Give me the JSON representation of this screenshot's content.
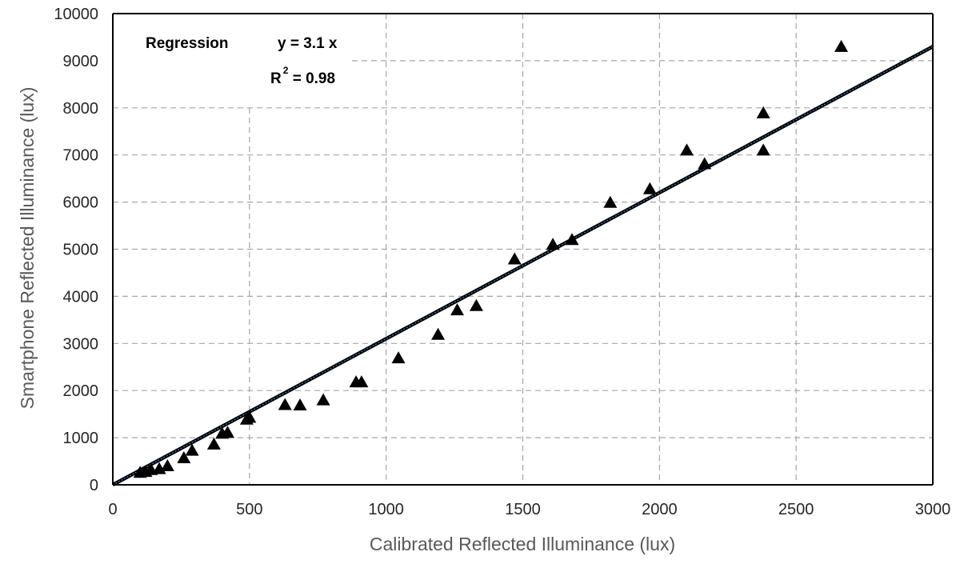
{
  "chart_data": {
    "type": "scatter",
    "title": "",
    "xlabel": "Calibrated Reflected Illuminance (lux)",
    "ylabel": "Smartphone Reflected Illuminance (lux)",
    "xlim": [
      0,
      3000
    ],
    "ylim": [
      0,
      10000
    ],
    "x_ticks": [
      "0",
      "500",
      "1000",
      "1500",
      "2000",
      "2500",
      "3000"
    ],
    "y_ticks": [
      "0",
      "1000",
      "2000",
      "3000",
      "4000",
      "5000",
      "6000",
      "7000",
      "8000",
      "9000",
      "10000"
    ],
    "grid": true,
    "marker": "triangle",
    "marker_color": "#000000",
    "points": [
      {
        "x": 100,
        "y": 250
      },
      {
        "x": 120,
        "y": 270
      },
      {
        "x": 140,
        "y": 310
      },
      {
        "x": 170,
        "y": 330
      },
      {
        "x": 200,
        "y": 390
      },
      {
        "x": 260,
        "y": 560
      },
      {
        "x": 290,
        "y": 720
      },
      {
        "x": 370,
        "y": 850
      },
      {
        "x": 400,
        "y": 1080
      },
      {
        "x": 420,
        "y": 1100
      },
      {
        "x": 490,
        "y": 1380
      },
      {
        "x": 500,
        "y": 1420
      },
      {
        "x": 630,
        "y": 1690
      },
      {
        "x": 685,
        "y": 1680
      },
      {
        "x": 770,
        "y": 1790
      },
      {
        "x": 890,
        "y": 2170
      },
      {
        "x": 910,
        "y": 2170
      },
      {
        "x": 1045,
        "y": 2680
      },
      {
        "x": 1190,
        "y": 3180
      },
      {
        "x": 1260,
        "y": 3700
      },
      {
        "x": 1330,
        "y": 3790
      },
      {
        "x": 1470,
        "y": 4780
      },
      {
        "x": 1610,
        "y": 5090
      },
      {
        "x": 1680,
        "y": 5190
      },
      {
        "x": 1820,
        "y": 5980
      },
      {
        "x": 1965,
        "y": 6270
      },
      {
        "x": 2100,
        "y": 7090
      },
      {
        "x": 2165,
        "y": 6800
      },
      {
        "x": 2380,
        "y": 7880
      },
      {
        "x": 2380,
        "y": 7090
      },
      {
        "x": 2665,
        "y": 9290
      }
    ],
    "regression": {
      "slope": 3.1,
      "intercept": 0,
      "line_color": "#000000",
      "inner_color": "#4a7fc1"
    },
    "annotation": {
      "label": "Regression",
      "equation": "y = 3.1 x",
      "r2_prefix": "R",
      "r2_sup": "2",
      "r2_value": " = 0.98"
    }
  }
}
